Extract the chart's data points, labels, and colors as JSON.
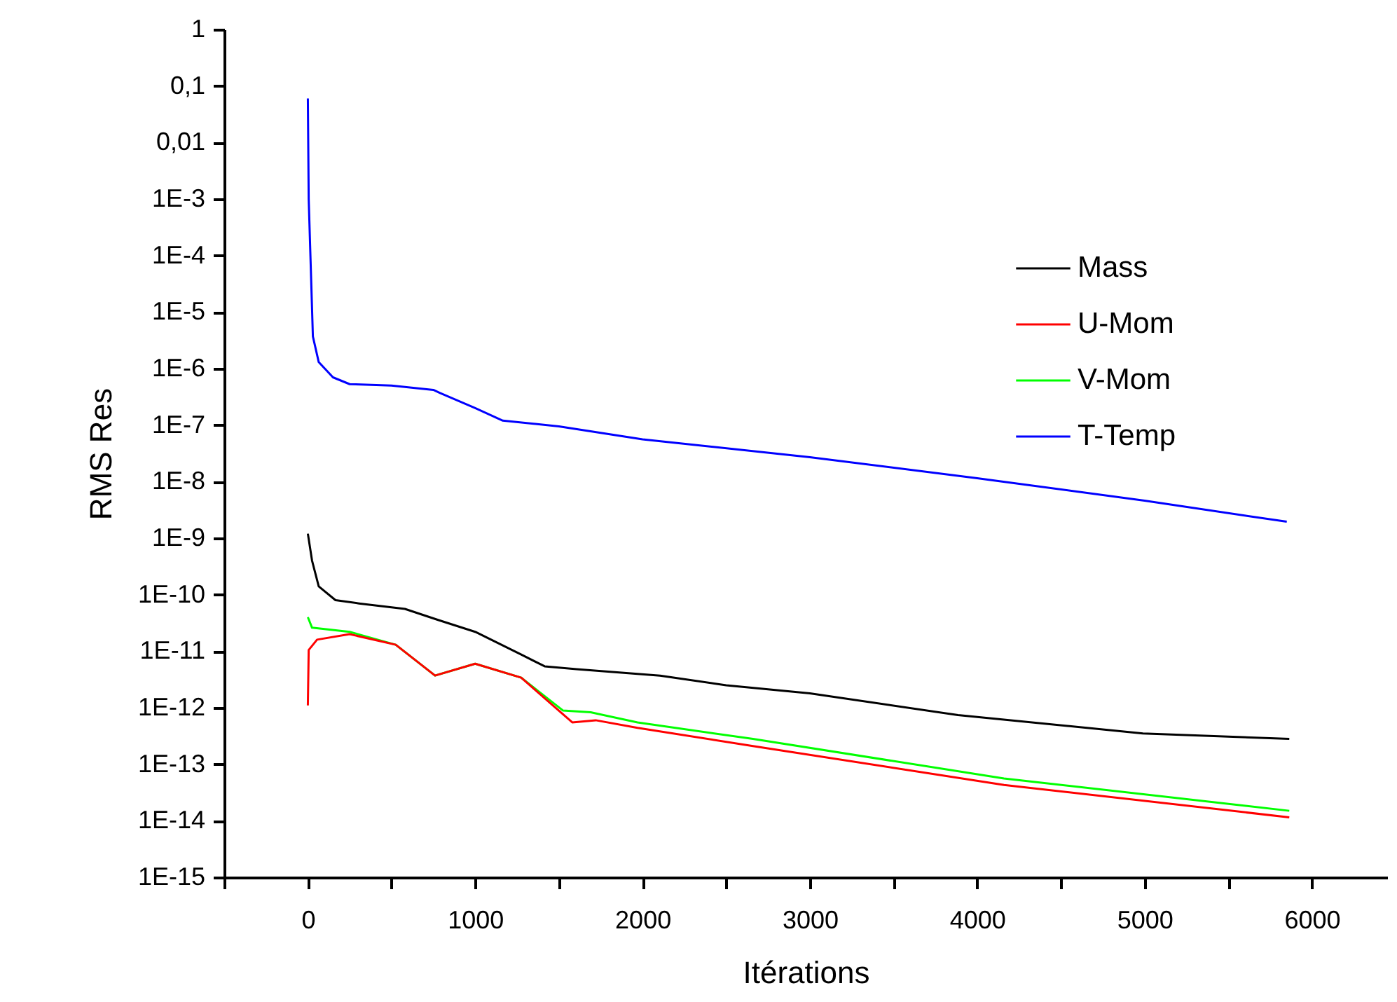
{
  "chart_data": {
    "type": "line",
    "xlabel": "Itérations",
    "ylabel": "RMS Res",
    "log": "y",
    "legend": "top right",
    "xlim": [
      -500,
      6450
    ],
    "ylim": [
      1e-15,
      1
    ],
    "xticks": [
      {
        "value": -500,
        "label": null
      },
      0,
      {
        "value": 500,
        "label": null
      },
      1000,
      {
        "value": 1500,
        "label": null
      },
      2000,
      {
        "value": 2500,
        "label": null
      },
      3000,
      {
        "value": 3500,
        "label": null
      },
      4000,
      {
        "value": 4500,
        "label": null
      },
      5000,
      {
        "value": 5500,
        "label": null
      },
      6000
    ],
    "yticks": [
      1,
      {
        "value": 0.1,
        "label": "0,1"
      },
      {
        "value": 0.01,
        "label": "0,01"
      },
      {
        "value": 0.001,
        "label": "1E-3"
      },
      {
        "value": 0.0001,
        "label": "1E-4"
      },
      {
        "value": 1e-05,
        "label": "1E-5"
      },
      {
        "value": 1e-06,
        "label": "1E-6"
      },
      {
        "value": 1e-07,
        "label": "1E-7"
      },
      {
        "value": 1e-08,
        "label": "1E-8"
      },
      {
        "value": 1e-09,
        "label": "1E-9"
      },
      {
        "value": 1e-10,
        "label": "1E-10"
      },
      {
        "value": 1e-11,
        "label": "1E-11"
      },
      {
        "value": 1e-12,
        "label": "1E-12"
      },
      {
        "value": 1e-13,
        "label": "1E-13"
      },
      {
        "value": 1e-14,
        "label": "1E-14"
      },
      {
        "value": 1e-15,
        "label": "1E-15"
      }
    ],
    "series": [
      {
        "name": "Mass",
        "color": "#000000",
        "x": [
          0,
          25,
          65,
          165,
          305,
          580,
          775,
          1000,
          1275,
          1415,
          1605,
          2105,
          2500,
          3000,
          3885,
          4990,
          5865
        ],
        "values": [
          1.2e-09,
          4e-10,
          1.4e-10,
          8e-11,
          7e-11,
          5.6e-11,
          3.6e-11,
          2.2e-11,
          8.7e-12,
          5.4e-12,
          4.8e-12,
          3.7e-12,
          2.5e-12,
          1.8e-12,
          7.4e-13,
          3.5e-13,
          2.8e-13
        ]
      },
      {
        "name": "U-Mom",
        "color": "#ff0000",
        "x": [
          0,
          5,
          55,
          250,
          525,
          760,
          1000,
          1275,
          1580,
          1720,
          1970,
          2660,
          4160,
          5865
        ],
        "values": [
          1.1e-12,
          1.05e-11,
          1.6e-11,
          2e-11,
          1.3e-11,
          3.7e-12,
          6e-12,
          3.4e-12,
          5.5e-13,
          6e-13,
          4.4e-13,
          2.1e-13,
          4.3e-14,
          1.15e-14
        ]
      },
      {
        "name": "V-Mom",
        "color": "#00ff00",
        "x": [
          0,
          25,
          250,
          525,
          760,
          1000,
          1275,
          1525,
          1690,
          1970,
          2660,
          4160,
          5865
        ],
        "values": [
          4e-11,
          2.6e-11,
          2.2e-11,
          1.3e-11,
          3.7e-12,
          6e-12,
          3.4e-12,
          8.9e-13,
          8.3e-13,
          5.5e-13,
          2.8e-13,
          5.6e-14,
          1.5e-14
        ]
      },
      {
        "name": "T-Temp",
        "color": "#0000ff",
        "x": [
          0,
          5,
          30,
          65,
          150,
          250,
          500,
          750,
          790,
          1000,
          1165,
          1500,
          2000,
          3000,
          4000,
          5000,
          5850
        ],
        "values": [
          0.06,
          0.001,
          3.7e-06,
          1.3e-06,
          7e-07,
          5.3e-07,
          5e-07,
          4.2e-07,
          3.7e-07,
          2e-07,
          1.2e-07,
          9.5e-08,
          5.6e-08,
          2.7e-08,
          1.15e-08,
          4.6e-09,
          1.95e-09
        ]
      }
    ]
  }
}
